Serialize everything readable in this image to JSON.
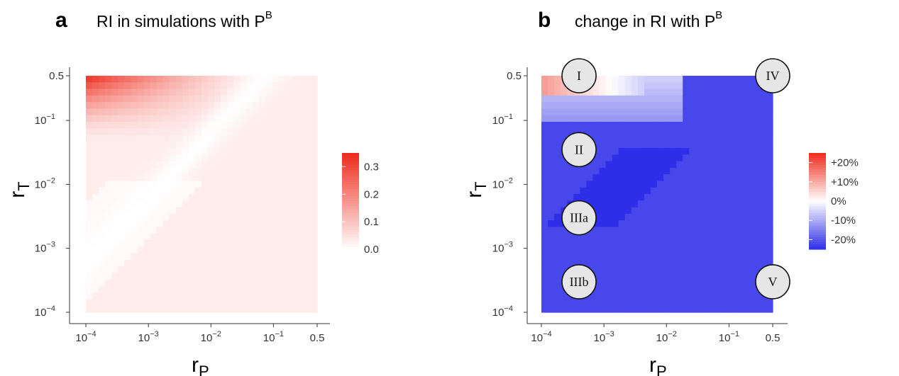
{
  "chart_data": [
    {
      "type": "heatmap",
      "panel_letter": "a",
      "title": "RI in simulations with P",
      "title_sup": "B",
      "xlabel": "r",
      "xlabel_sub": "P",
      "ylabel": "r",
      "ylabel_sub": "T",
      "x_scale": "log",
      "y_scale": "log",
      "xlim": [
        0.0001,
        0.5
      ],
      "ylim": [
        0.0001,
        0.5
      ],
      "x_ticks": [
        {
          "value": 0.0001,
          "base": "10",
          "exp": "−4"
        },
        {
          "value": 0.001,
          "base": "10",
          "exp": "−3"
        },
        {
          "value": 0.01,
          "base": "10",
          "exp": "−2"
        },
        {
          "value": 0.1,
          "base": "10",
          "exp": "−1"
        },
        {
          "value": 0.5,
          "base": "0.5",
          "exp": ""
        }
      ],
      "y_ticks": [
        {
          "value": 0.0001,
          "base": "10",
          "exp": "−4"
        },
        {
          "value": 0.001,
          "base": "10",
          "exp": "−3"
        },
        {
          "value": 0.01,
          "base": "10",
          "exp": "−2"
        },
        {
          "value": 0.1,
          "base": "10",
          "exp": "−1"
        },
        {
          "value": 0.5,
          "base": "0.5",
          "exp": ""
        }
      ],
      "colorscale": {
        "low": "#ffffff",
        "high": "#ee2a1b",
        "min": 0,
        "max": 0.35
      },
      "legend_ticks": [
        {
          "value": 0.0,
          "label": "0.0"
        },
        {
          "value": 0.1,
          "label": "0.1"
        },
        {
          "value": 0.2,
          "label": "0.2"
        },
        {
          "value": 0.3,
          "label": "0.3"
        }
      ],
      "grid": false,
      "legend_position": "right",
      "description_of_values": "RI ≈ 0.35 at largest rT and smallest rP, falling toward 0 near a diagonal band; faint positive (~0.03) elsewhere"
    },
    {
      "type": "heatmap",
      "panel_letter": "b",
      "title": "change in RI with P",
      "title_sup": "B",
      "xlabel": "r",
      "xlabel_sub": "P",
      "ylabel": "r",
      "ylabel_sub": "T",
      "x_scale": "log",
      "y_scale": "log",
      "xlim": [
        0.0001,
        0.5
      ],
      "ylim": [
        0.0001,
        0.5
      ],
      "x_ticks": [
        {
          "value": 0.0001,
          "base": "10",
          "exp": "−4"
        },
        {
          "value": 0.001,
          "base": "10",
          "exp": "−3"
        },
        {
          "value": 0.01,
          "base": "10",
          "exp": "−2"
        },
        {
          "value": 0.1,
          "base": "10",
          "exp": "−1"
        },
        {
          "value": 0.5,
          "base": "0.5",
          "exp": ""
        }
      ],
      "y_ticks": [
        {
          "value": 0.0001,
          "base": "10",
          "exp": "−4"
        },
        {
          "value": 0.001,
          "base": "10",
          "exp": "−3"
        },
        {
          "value": 0.01,
          "base": "10",
          "exp": "−2"
        },
        {
          "value": 0.1,
          "base": "10",
          "exp": "−1"
        },
        {
          "value": 0.5,
          "base": "0.5",
          "exp": ""
        }
      ],
      "colorscale": {
        "low": "#2e2ee8",
        "mid": "#ffffff",
        "high": "#ee2a1b",
        "min": -25,
        "max": 25
      },
      "legend_ticks": [
        {
          "value": 20,
          "label": "+20%"
        },
        {
          "value": 10,
          "label": "+10%"
        },
        {
          "value": 0,
          "label": "0%"
        },
        {
          "value": -10,
          "label": "-10%"
        },
        {
          "value": -20,
          "label": "-20%"
        }
      ],
      "grid": false,
      "legend_position": "right",
      "regions": [
        {
          "label": "I",
          "x": 0.0004,
          "y": 0.5
        },
        {
          "label": "IV",
          "x": 0.5,
          "y": 0.5
        },
        {
          "label": "II",
          "x": 0.0004,
          "y": 0.035
        },
        {
          "label": "IIIa",
          "x": 0.0004,
          "y": 0.003
        },
        {
          "label": "IIIb",
          "x": 0.0004,
          "y": 0.0003
        },
        {
          "label": "V",
          "x": 0.5,
          "y": 0.0003
        }
      ]
    }
  ]
}
